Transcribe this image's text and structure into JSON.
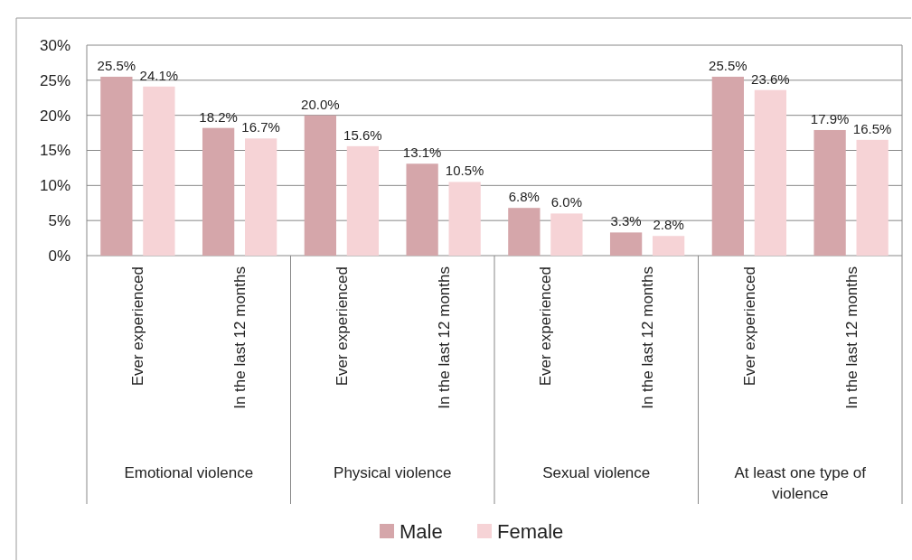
{
  "chart_data": {
    "type": "bar",
    "categories": [
      "Ever experienced",
      "In the last 12 months",
      "Ever experienced",
      "In the last 12 months",
      "Ever experienced",
      "In the last 12 months",
      "Ever experienced",
      "In the last 12 months"
    ],
    "series": [
      {
        "name": "Male",
        "color": "#d5a6aa",
        "values": [
          25.5,
          18.2,
          20.0,
          13.1,
          6.8,
          3.3,
          25.5,
          17.9
        ]
      },
      {
        "name": "Female",
        "color": "#f6d3d6",
        "values": [
          24.1,
          16.7,
          15.6,
          10.5,
          6.0,
          2.8,
          23.6,
          16.5
        ]
      }
    ],
    "value_labels": [
      [
        "25.5%",
        "18.2%",
        "20.0%",
        "13.1%",
        "6.8%",
        "3.3%",
        "25.5%",
        "17.9%"
      ],
      [
        "24.1%",
        "16.7%",
        "15.6%",
        "10.5%",
        "6.0%",
        "2.8%",
        "23.6%",
        "16.5%"
      ]
    ],
    "annotations": [
      "Emotional violence",
      "Physical violence",
      "Sexual violence",
      "At least one type of violence"
    ],
    "ylim": [
      0,
      30
    ],
    "yticks": [
      {
        "value": 0,
        "label": "0%"
      },
      {
        "value": 5,
        "label": "5%"
      },
      {
        "value": 10,
        "label": "10%"
      },
      {
        "value": 15,
        "label": "15%"
      },
      {
        "value": 20,
        "label": "20%"
      },
      {
        "value": 25,
        "label": "25%"
      },
      {
        "value": 30,
        "label": "30%"
      }
    ],
    "grid": "y",
    "legend": "bottom"
  }
}
